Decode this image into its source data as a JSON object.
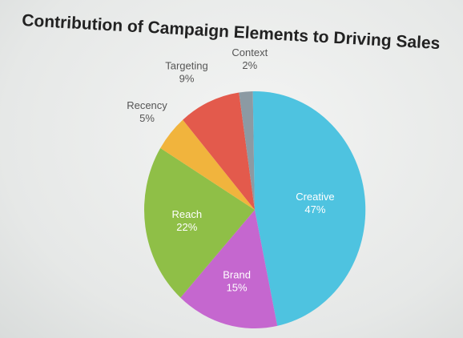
{
  "chart_data": {
    "type": "pie",
    "title": "Contribution of Campaign Elements to Driving Sales",
    "slices": [
      {
        "label": "Creative",
        "value": 47,
        "value_label": "47%",
        "color": "#4ec3e0",
        "label_pos": "inside",
        "text_color": "#ffffff"
      },
      {
        "label": "Brand",
        "value": 15,
        "value_label": "15%",
        "color": "#c567cf",
        "label_pos": "inside",
        "text_color": "#ffffff"
      },
      {
        "label": "Reach",
        "value": 22,
        "value_label": "22%",
        "color": "#8fbf47",
        "label_pos": "inside",
        "text_color": "#ffffff"
      },
      {
        "label": "Recency",
        "value": 5,
        "value_label": "5%",
        "color": "#f1b43d",
        "label_pos": "outside",
        "text_color": "#555555"
      },
      {
        "label": "Targeting",
        "value": 9,
        "value_label": "9%",
        "color": "#e35a4c",
        "label_pos": "outside",
        "text_color": "#555555"
      },
      {
        "label": "Context",
        "value": 2,
        "value_label": "2%",
        "color": "#8c9aa3",
        "label_pos": "outside",
        "text_color": "#555555"
      }
    ]
  }
}
